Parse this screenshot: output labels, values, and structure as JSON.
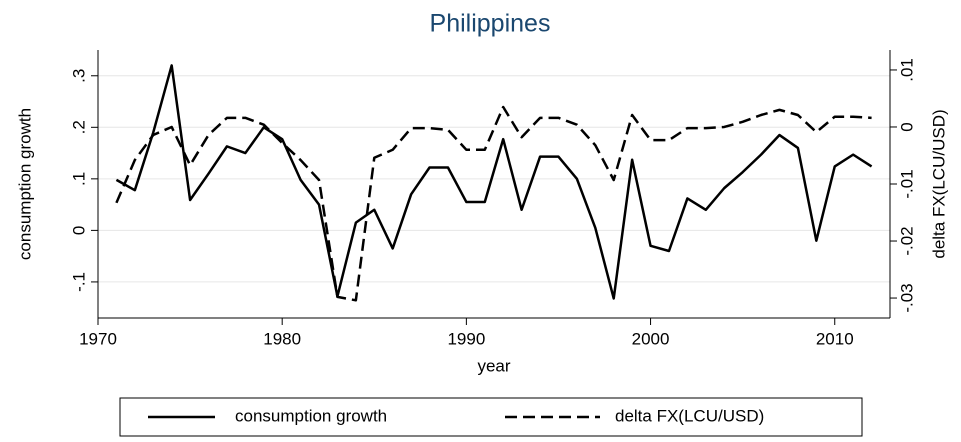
{
  "chart_data": {
    "type": "line",
    "title": "Philippines",
    "xlabel": "year",
    "ylabel": "consumption growth",
    "y2label": "delta FX(LCU/USD)",
    "x": [
      1971,
      1972,
      1973,
      1974,
      1975,
      1976,
      1977,
      1978,
      1979,
      1980,
      1981,
      1982,
      1983,
      1984,
      1985,
      1986,
      1987,
      1988,
      1989,
      1990,
      1991,
      1992,
      1993,
      1994,
      1995,
      1996,
      1997,
      1998,
      1999,
      2000,
      2001,
      2002,
      2003,
      2004,
      2005,
      2006,
      2007,
      2008,
      2009,
      2010,
      2011,
      2012
    ],
    "series": [
      {
        "name": "consumption growth",
        "color": "#000000",
        "dash": "solid",
        "values": [
          0.098,
          0.078,
          0.19,
          0.32,
          0.059,
          0.11,
          0.163,
          0.15,
          0.2,
          0.177,
          0.098,
          0.05,
          -0.128,
          0.015,
          0.04,
          -0.035,
          0.07,
          0.122,
          0.122,
          0.055,
          0.055,
          0.177,
          0.04,
          0.143,
          0.143,
          0.1,
          0.005,
          -0.132,
          0.137,
          -0.03,
          -0.04,
          0.062,
          0.04,
          0.082,
          0.113,
          0.147,
          0.185,
          0.16,
          -0.02,
          0.124,
          0.147,
          0.124
        ]
      },
      {
        "name": "delta FX(LCU/USD)",
        "color": "#000000",
        "dash": "dashed",
        "axis": "y2",
        "values": [
          -0.0133,
          -0.0058,
          -0.0014,
          0,
          -0.0067,
          -0.0014,
          0.0016,
          0.0016,
          0.0004,
          -0.0028,
          -0.0058,
          -0.0093,
          -0.0298,
          -0.0304,
          -0.0054,
          -0.004,
          -0.0002,
          -0.0002,
          -0.0005,
          -0.004,
          -0.004,
          0.0035,
          -0.0018,
          0.0016,
          0.0016,
          0.0004,
          -0.0032,
          -0.0093,
          0.0021,
          -0.0023,
          -0.0023,
          -0.0002,
          -0.0002,
          0,
          0.0009,
          0.0021,
          0.003,
          0.0021,
          -0.0009,
          0.0018,
          0.0018,
          0.0016
        ]
      }
    ],
    "xlim": [
      1970,
      2013
    ],
    "xticks": [
      1970,
      1980,
      1990,
      2000,
      2010
    ],
    "ylim": [
      -0.17,
      0.35
    ],
    "yticks": [
      {
        "value": -0.1,
        "label": "-.1"
      },
      0,
      {
        "value": 0.1,
        "label": ".1"
      },
      {
        "value": 0.2,
        "label": ".2"
      },
      {
        "value": 0.3,
        "label": ".3"
      }
    ],
    "y2lim": [
      -0.0335,
      0.0135
    ],
    "y2ticks": [
      {
        "value": -0.03,
        "label": "-.03"
      },
      {
        "value": -0.02,
        "label": "-.02"
      },
      {
        "value": -0.01,
        "label": "-.01"
      },
      0,
      {
        "value": 0.01,
        "label": ".01"
      }
    ],
    "grid": true,
    "legend": "bottom",
    "title_color": "#1a476f"
  }
}
